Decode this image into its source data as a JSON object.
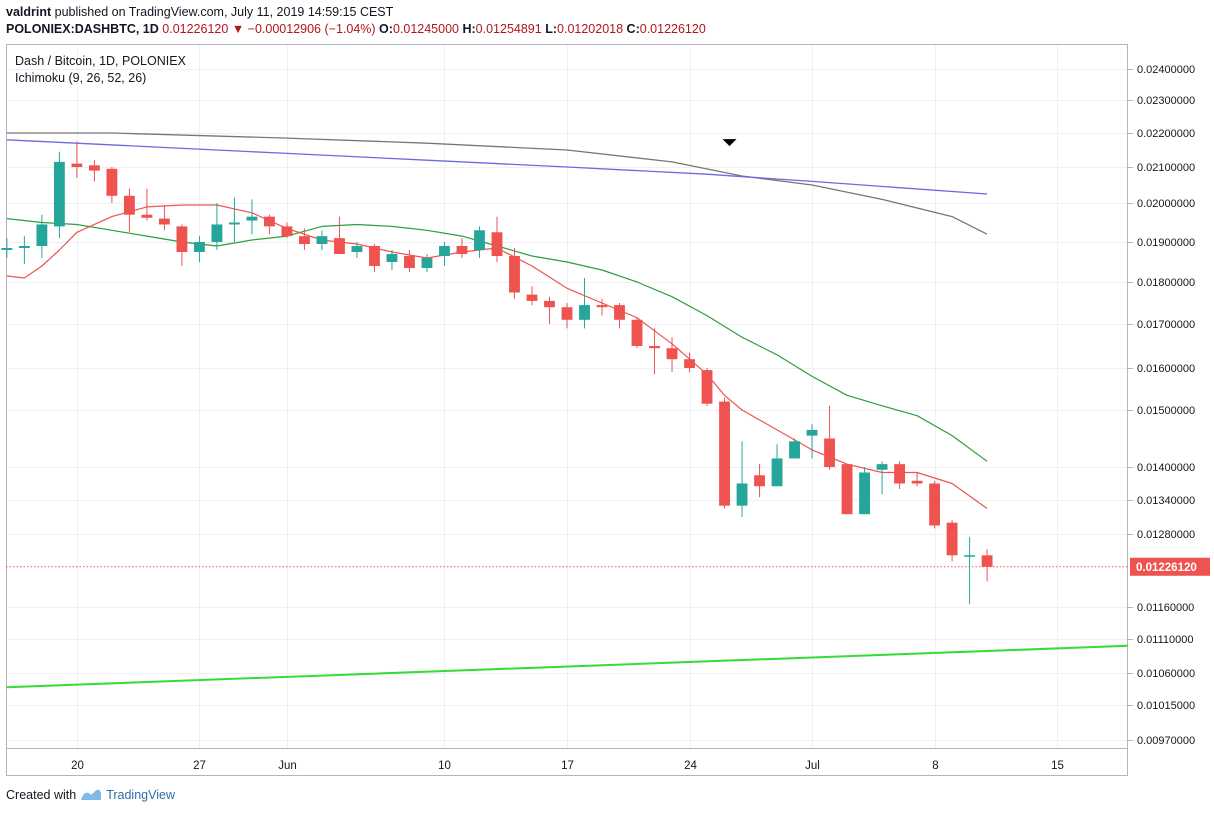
{
  "header": {
    "author": "valdrint",
    "published_text": "published on TradingView.com, July 11, 2019 14:59:15 CEST",
    "symbol": "POLONIEX:DASHBTC, 1D",
    "last": "0.01226120",
    "change": "−0.00012906 (−1.04%)",
    "o_label": "O:",
    "o_value": "0.01245000",
    "h_label": "H:",
    "h_value": "0.01254891",
    "l_label": "L:",
    "l_value": "0.01202018",
    "c_label": "C:",
    "c_value": "0.01226120"
  },
  "legend": {
    "line1": "Dash / Bitcoin, 1D, POLONIEX",
    "line2": "Ichimoku (9, 26, 52, 26)"
  },
  "footer": {
    "created_with": "Created with",
    "brand": "TradingView"
  },
  "colors": {
    "up": "#26a69a",
    "down": "#ef5350",
    "tenkan": "#ef5350",
    "kijun": "#2e9e3a",
    "span_a": "#6a6ae0",
    "span_b": "#777777",
    "support": "#33dd33",
    "price_label_bg": "#ef5350"
  },
  "chart_data": {
    "type": "candlestick",
    "title": "Dash / Bitcoin, 1D, POLONIEX",
    "y_axis_ticks": [
      "0.02400000",
      "0.02300000",
      "0.02200000",
      "0.02100000",
      "0.02000000",
      "0.01900000",
      "0.01800000",
      "0.01700000",
      "0.01600000",
      "0.01500000",
      "0.01400000",
      "0.01340000",
      "0.01280000",
      "0.01160000",
      "0.01110000",
      "0.01060000",
      "0.01015000",
      "0.00970000"
    ],
    "current_price_label": "0.01226120",
    "current_price": 0.0122612,
    "x_ticks": [
      {
        "label": "20",
        "day": 20
      },
      {
        "label": "27",
        "day": 27
      },
      {
        "label": "Jun",
        "day": 32
      },
      {
        "label": "10",
        "day": 41
      },
      {
        "label": "17",
        "day": 48
      },
      {
        "label": "24",
        "day": 55
      },
      {
        "label": "Jul",
        "day": 62
      },
      {
        "label": "8",
        "day": 69
      },
      {
        "label": "15",
        "day": 76
      }
    ],
    "x_range_days": [
      15.95,
      80.05
    ],
    "candles": [
      {
        "day": 16,
        "o": 0.0188,
        "h": 0.0191,
        "l": 0.0186,
        "c": 0.01885
      },
      {
        "day": 17,
        "o": 0.01885,
        "h": 0.01915,
        "l": 0.01845,
        "c": 0.0189
      },
      {
        "day": 18,
        "o": 0.0189,
        "h": 0.0197,
        "l": 0.0186,
        "c": 0.01945
      },
      {
        "day": 19,
        "o": 0.0194,
        "h": 0.02145,
        "l": 0.0191,
        "c": 0.02115
      },
      {
        "day": 20,
        "o": 0.0211,
        "h": 0.02175,
        "l": 0.0207,
        "c": 0.021
      },
      {
        "day": 21,
        "o": 0.02105,
        "h": 0.0212,
        "l": 0.0206,
        "c": 0.0209
      },
      {
        "day": 22,
        "o": 0.02095,
        "h": 0.021,
        "l": 0.02,
        "c": 0.0202
      },
      {
        "day": 23,
        "o": 0.0202,
        "h": 0.0204,
        "l": 0.01925,
        "c": 0.0197
      },
      {
        "day": 24,
        "o": 0.0197,
        "h": 0.0204,
        "l": 0.01955,
        "c": 0.01962
      },
      {
        "day": 25,
        "o": 0.0196,
        "h": 0.01995,
        "l": 0.0193,
        "c": 0.01945
      },
      {
        "day": 26,
        "o": 0.0194,
        "h": 0.01945,
        "l": 0.0184,
        "c": 0.01875
      },
      {
        "day": 27,
        "o": 0.01875,
        "h": 0.01915,
        "l": 0.0185,
        "c": 0.019
      },
      {
        "day": 28,
        "o": 0.019,
        "h": 0.02,
        "l": 0.0188,
        "c": 0.01945
      },
      {
        "day": 29,
        "o": 0.01945,
        "h": 0.02015,
        "l": 0.019,
        "c": 0.0195
      },
      {
        "day": 30,
        "o": 0.01955,
        "h": 0.0201,
        "l": 0.0192,
        "c": 0.01965
      },
      {
        "day": 31,
        "o": 0.01965,
        "h": 0.0197,
        "l": 0.0192,
        "c": 0.0194
      },
      {
        "day": 32,
        "o": 0.0194,
        "h": 0.0195,
        "l": 0.0191,
        "c": 0.01915
      },
      {
        "day": 33,
        "o": 0.01915,
        "h": 0.01935,
        "l": 0.0188,
        "c": 0.01895
      },
      {
        "day": 34,
        "o": 0.01895,
        "h": 0.0193,
        "l": 0.0188,
        "c": 0.01915
      },
      {
        "day": 35,
        "o": 0.0191,
        "h": 0.01965,
        "l": 0.0187,
        "c": 0.0187
      },
      {
        "day": 36,
        "o": 0.01875,
        "h": 0.019,
        "l": 0.0186,
        "c": 0.0189
      },
      {
        "day": 37,
        "o": 0.0189,
        "h": 0.01895,
        "l": 0.01825,
        "c": 0.0184
      },
      {
        "day": 38,
        "o": 0.0185,
        "h": 0.0188,
        "l": 0.0183,
        "c": 0.0187
      },
      {
        "day": 39,
        "o": 0.01865,
        "h": 0.0188,
        "l": 0.01825,
        "c": 0.01835
      },
      {
        "day": 40,
        "o": 0.01835,
        "h": 0.0187,
        "l": 0.01825,
        "c": 0.0186
      },
      {
        "day": 41,
        "o": 0.01865,
        "h": 0.019,
        "l": 0.0184,
        "c": 0.0189
      },
      {
        "day": 42,
        "o": 0.0189,
        "h": 0.0191,
        "l": 0.0186,
        "c": 0.0187
      },
      {
        "day": 43,
        "o": 0.0188,
        "h": 0.0194,
        "l": 0.0186,
        "c": 0.0193
      },
      {
        "day": 44,
        "o": 0.01925,
        "h": 0.01965,
        "l": 0.0185,
        "c": 0.01865
      },
      {
        "day": 45,
        "o": 0.01865,
        "h": 0.01885,
        "l": 0.0176,
        "c": 0.01775
      },
      {
        "day": 46,
        "o": 0.0177,
        "h": 0.0179,
        "l": 0.01745,
        "c": 0.01755
      },
      {
        "day": 47,
        "o": 0.01755,
        "h": 0.01765,
        "l": 0.017,
        "c": 0.0174
      },
      {
        "day": 48,
        "o": 0.0174,
        "h": 0.0175,
        "l": 0.0169,
        "c": 0.0171
      },
      {
        "day": 49,
        "o": 0.0171,
        "h": 0.0181,
        "l": 0.0169,
        "c": 0.01745
      },
      {
        "day": 50,
        "o": 0.01745,
        "h": 0.0176,
        "l": 0.0172,
        "c": 0.0174
      },
      {
        "day": 51,
        "o": 0.01745,
        "h": 0.0175,
        "l": 0.0169,
        "c": 0.0171
      },
      {
        "day": 52,
        "o": 0.0171,
        "h": 0.01715,
        "l": 0.01645,
        "c": 0.0165
      },
      {
        "day": 53,
        "o": 0.0165,
        "h": 0.0169,
        "l": 0.01585,
        "c": 0.01645
      },
      {
        "day": 54,
        "o": 0.01645,
        "h": 0.0167,
        "l": 0.0159,
        "c": 0.0162
      },
      {
        "day": 55,
        "o": 0.0162,
        "h": 0.01635,
        "l": 0.0159,
        "c": 0.016
      },
      {
        "day": 56,
        "o": 0.01595,
        "h": 0.016,
        "l": 0.0151,
        "c": 0.01515
      },
      {
        "day": 57,
        "o": 0.0152,
        "h": 0.0153,
        "l": 0.01325,
        "c": 0.0133
      },
      {
        "day": 58,
        "o": 0.0133,
        "h": 0.01445,
        "l": 0.0131,
        "c": 0.0137
      },
      {
        "day": 59,
        "o": 0.01385,
        "h": 0.01405,
        "l": 0.01345,
        "c": 0.01365
      },
      {
        "day": 60,
        "o": 0.01365,
        "h": 0.0144,
        "l": 0.01365,
        "c": 0.01415
      },
      {
        "day": 61,
        "o": 0.01415,
        "h": 0.0145,
        "l": 0.01415,
        "c": 0.01445
      },
      {
        "day": 62,
        "o": 0.01455,
        "h": 0.01475,
        "l": 0.01415,
        "c": 0.01465
      },
      {
        "day": 63,
        "o": 0.0145,
        "h": 0.0151,
        "l": 0.01395,
        "c": 0.014
      },
      {
        "day": 64,
        "o": 0.01405,
        "h": 0.01405,
        "l": 0.01315,
        "c": 0.01315
      },
      {
        "day": 65,
        "o": 0.01315,
        "h": 0.014,
        "l": 0.01315,
        "c": 0.0139
      },
      {
        "day": 66,
        "o": 0.01395,
        "h": 0.0141,
        "l": 0.0135,
        "c": 0.01405
      },
      {
        "day": 67,
        "o": 0.01405,
        "h": 0.0141,
        "l": 0.0136,
        "c": 0.0137
      },
      {
        "day": 68,
        "o": 0.01375,
        "h": 0.0139,
        "l": 0.01365,
        "c": 0.0137
      },
      {
        "day": 69,
        "o": 0.0137,
        "h": 0.01375,
        "l": 0.0129,
        "c": 0.01295
      },
      {
        "day": 70,
        "o": 0.013,
        "h": 0.01305,
        "l": 0.01235,
        "c": 0.01245
      },
      {
        "day": 71,
        "o": 0.01245,
        "h": 0.01275,
        "l": 0.01165,
        "c": 0.01245
      },
      {
        "day": 72,
        "o": 0.01245,
        "h": 0.01255,
        "l": 0.01202,
        "c": 0.01226
      }
    ],
    "tenkan": [
      [
        16,
        0.01815
      ],
      [
        17,
        0.0181
      ],
      [
        18,
        0.0184
      ],
      [
        19,
        0.0188
      ],
      [
        20,
        0.01925
      ],
      [
        22,
        0.01965
      ],
      [
        24,
        0.0199
      ],
      [
        26,
        0.01995
      ],
      [
        28,
        0.01995
      ],
      [
        30,
        0.01975
      ],
      [
        32,
        0.01935
      ],
      [
        34,
        0.01905
      ],
      [
        36,
        0.01895
      ],
      [
        38,
        0.01875
      ],
      [
        40,
        0.0186
      ],
      [
        42,
        0.01875
      ],
      [
        44,
        0.01885
      ],
      [
        46,
        0.0184
      ],
      [
        48,
        0.01785
      ],
      [
        50,
        0.0175
      ],
      [
        52,
        0.01715
      ],
      [
        54,
        0.01655
      ],
      [
        56,
        0.01585
      ],
      [
        57,
        0.01535
      ],
      [
        58,
        0.015
      ],
      [
        60,
        0.01465
      ],
      [
        62,
        0.0143
      ],
      [
        64,
        0.01405
      ],
      [
        66,
        0.0139
      ],
      [
        68,
        0.0139
      ],
      [
        70,
        0.0137
      ],
      [
        72,
        0.01325
      ]
    ],
    "kijun": [
      [
        16,
        0.0196
      ],
      [
        18,
        0.0195
      ],
      [
        20,
        0.01945
      ],
      [
        22,
        0.0193
      ],
      [
        24,
        0.01915
      ],
      [
        26,
        0.019
      ],
      [
        28,
        0.0189
      ],
      [
        30,
        0.01905
      ],
      [
        32,
        0.01915
      ],
      [
        34,
        0.0194
      ],
      [
        36,
        0.01945
      ],
      [
        38,
        0.0194
      ],
      [
        40,
        0.0193
      ],
      [
        42,
        0.01915
      ],
      [
        44,
        0.0189
      ],
      [
        46,
        0.01865
      ],
      [
        48,
        0.0185
      ],
      [
        50,
        0.0183
      ],
      [
        52,
        0.018
      ],
      [
        54,
        0.01765
      ],
      [
        56,
        0.0172
      ],
      [
        58,
        0.0167
      ],
      [
        60,
        0.0163
      ],
      [
        62,
        0.0158
      ],
      [
        64,
        0.01535
      ],
      [
        66,
        0.0151
      ],
      [
        68,
        0.0149
      ],
      [
        70,
        0.01455
      ],
      [
        72,
        0.0141
      ]
    ],
    "span_a": [
      [
        16,
        0.0218
      ],
      [
        24,
        0.0216
      ],
      [
        32,
        0.0214
      ],
      [
        40,
        0.0212
      ],
      [
        48,
        0.021
      ],
      [
        56,
        0.0208
      ],
      [
        62,
        0.0206
      ],
      [
        72,
        0.02025
      ]
    ],
    "span_b": [
      [
        16,
        0.022
      ],
      [
        22,
        0.022
      ],
      [
        32,
        0.02185
      ],
      [
        40,
        0.0217
      ],
      [
        48,
        0.0215
      ],
      [
        54,
        0.02115
      ],
      [
        58,
        0.02075
      ],
      [
        62,
        0.0205
      ],
      [
        66,
        0.0201
      ],
      [
        70,
        0.01965
      ],
      [
        72,
        0.0192
      ]
    ],
    "support_line": [
      [
        16,
        0.0104
      ],
      [
        80,
        0.011
      ]
    ],
    "marker_day": 57
  }
}
